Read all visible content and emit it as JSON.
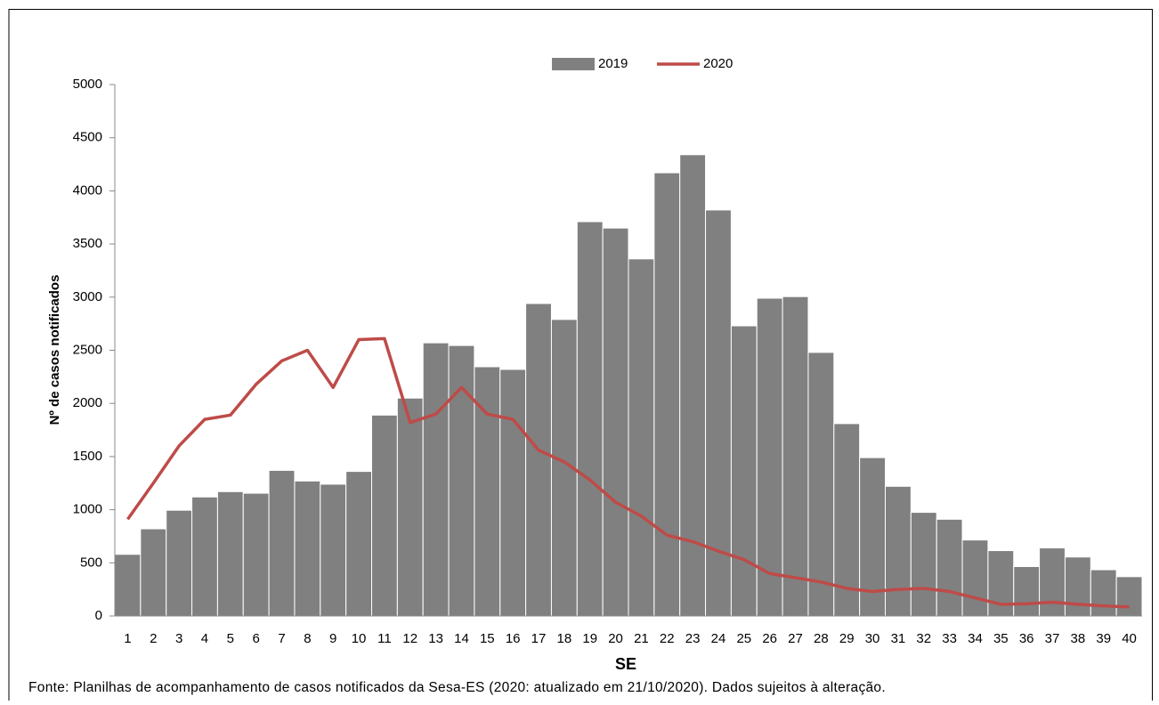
{
  "chart_data": {
    "type": "bar-line",
    "categories": [
      "1",
      "2",
      "3",
      "4",
      "5",
      "6",
      "7",
      "8",
      "9",
      "10",
      "11",
      "12",
      "13",
      "14",
      "15",
      "16",
      "17",
      "18",
      "19",
      "20",
      "21",
      "22",
      "23",
      "24",
      "25",
      "26",
      "27",
      "28",
      "29",
      "30",
      "31",
      "32",
      "33",
      "34",
      "35",
      "36",
      "37",
      "38",
      "39",
      "40"
    ],
    "series": [
      {
        "name": "2019",
        "type": "bar",
        "color": "#808080",
        "values": [
          580,
          820,
          995,
          1120,
          1170,
          1155,
          1370,
          1270,
          1240,
          1360,
          1890,
          2050,
          2570,
          2545,
          2345,
          2320,
          2940,
          2790,
          3710,
          3650,
          3360,
          4170,
          4340,
          3820,
          2730,
          2990,
          3005,
          2480,
          1810,
          1490,
          1220,
          975,
          910,
          715,
          615,
          465,
          640,
          555,
          435,
          370
        ]
      },
      {
        "name": "2020",
        "type": "line",
        "color": "#be4b48",
        "values": [
          910,
          1250,
          1600,
          1850,
          1890,
          2180,
          2400,
          2500,
          2150,
          2600,
          2610,
          1820,
          1900,
          2150,
          1900,
          1850,
          1560,
          1450,
          1280,
          1070,
          940,
          760,
          700,
          610,
          530,
          400,
          360,
          320,
          260,
          230,
          250,
          260,
          230,
          170,
          110,
          115,
          130,
          110,
          95,
          85
        ]
      }
    ],
    "ylim": [
      0,
      5000
    ],
    "yticks": [
      0,
      500,
      1000,
      1500,
      2000,
      2500,
      3000,
      3500,
      4000,
      4500,
      5000
    ],
    "ylabel": "Nº de casos  notificados",
    "xlabel": "SE",
    "legend": "top",
    "note": "Fonte:  Planilhas de acompanhamento  de casos notificados da Sesa-ES (2020:  atualizado em 21/10/2020).  Dados sujeitos à alteração."
  }
}
